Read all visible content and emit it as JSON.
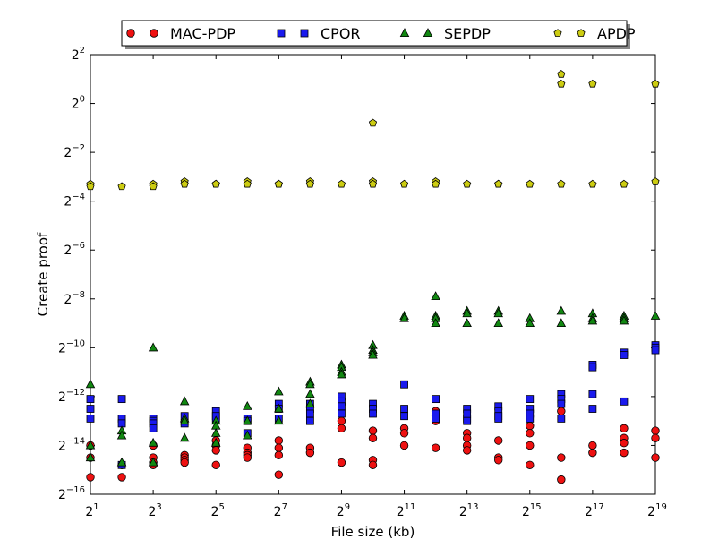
{
  "chart_data": {
    "type": "scatter",
    "title": "",
    "xlabel": "File size (kb)",
    "ylabel": "Create proof",
    "x_scale": "log2",
    "y_scale": "log2",
    "xlim_exp": [
      1,
      19
    ],
    "ylim_exp": [
      -16,
      2
    ],
    "x_tick_exps": [
      1,
      3,
      5,
      7,
      9,
      11,
      13,
      15,
      17,
      19
    ],
    "y_tick_exps": [
      2,
      0,
      -2,
      -4,
      -6,
      -8,
      -10,
      -12,
      -14,
      -16
    ],
    "tick_base": "2",
    "grid": false,
    "legend_position": "top-center",
    "series": [
      {
        "name": "MAC-PDP",
        "marker": "circle",
        "color": "#ee1111",
        "points": [
          [
            1,
            -14.0
          ],
          [
            1,
            -14.5
          ],
          [
            1,
            -15.3
          ],
          [
            2,
            -14.8
          ],
          [
            2,
            -15.3
          ],
          [
            3,
            -14.0
          ],
          [
            3,
            -14.5
          ],
          [
            3,
            -14.7
          ],
          [
            3,
            -14.8
          ],
          [
            4,
            -14.4
          ],
          [
            4,
            -14.5
          ],
          [
            4,
            -14.6
          ],
          [
            4,
            -14.7
          ],
          [
            5,
            -13.8
          ],
          [
            5,
            -14.0
          ],
          [
            5,
            -14.2
          ],
          [
            5,
            -14.8
          ],
          [
            6,
            -14.1
          ],
          [
            6,
            -14.3
          ],
          [
            6,
            -14.4
          ],
          [
            6,
            -14.5
          ],
          [
            7,
            -13.8
          ],
          [
            7,
            -14.1
          ],
          [
            7,
            -14.4
          ],
          [
            7,
            -15.2
          ],
          [
            8,
            -14.1
          ],
          [
            8,
            -14.3
          ],
          [
            9,
            -13.0
          ],
          [
            9,
            -13.3
          ],
          [
            9,
            -14.7
          ],
          [
            10,
            -13.4
          ],
          [
            10,
            -13.7
          ],
          [
            10,
            -14.6
          ],
          [
            10,
            -14.8
          ],
          [
            11,
            -13.3
          ],
          [
            11,
            -13.5
          ],
          [
            11,
            -14.0
          ],
          [
            12,
            -12.6
          ],
          [
            12,
            -12.8
          ],
          [
            12,
            -13.0
          ],
          [
            12,
            -14.1
          ],
          [
            13,
            -13.5
          ],
          [
            13,
            -13.7
          ],
          [
            13,
            -14.0
          ],
          [
            13,
            -14.2
          ],
          [
            14,
            -13.8
          ],
          [
            14,
            -14.5
          ],
          [
            14,
            -14.6
          ],
          [
            15,
            -13.2
          ],
          [
            15,
            -13.5
          ],
          [
            15,
            -14.0
          ],
          [
            15,
            -14.8
          ],
          [
            16,
            -12.6
          ],
          [
            16,
            -14.5
          ],
          [
            16,
            -15.4
          ],
          [
            17,
            -14.0
          ],
          [
            17,
            -14.3
          ],
          [
            18,
            -13.3
          ],
          [
            18,
            -13.7
          ],
          [
            18,
            -13.9
          ],
          [
            18,
            -14.3
          ],
          [
            19,
            -13.4
          ],
          [
            19,
            -13.7
          ],
          [
            19,
            -14.5
          ]
        ]
      },
      {
        "name": "CPOR",
        "marker": "square",
        "color": "#1a1aee",
        "points": [
          [
            1,
            -12.1
          ],
          [
            1,
            -12.5
          ],
          [
            1,
            -12.9
          ],
          [
            2,
            -12.1
          ],
          [
            2,
            -12.9
          ],
          [
            2,
            -13.1
          ],
          [
            2,
            -14.8
          ],
          [
            3,
            -12.9
          ],
          [
            3,
            -13.0
          ],
          [
            3,
            -13.1
          ],
          [
            3,
            -13.3
          ],
          [
            4,
            -12.8
          ],
          [
            4,
            -13.1
          ],
          [
            5,
            -12.6
          ],
          [
            5,
            -12.8
          ],
          [
            5,
            -12.9
          ],
          [
            6,
            -12.9
          ],
          [
            6,
            -13.0
          ],
          [
            6,
            -13.5
          ],
          [
            7,
            -12.3
          ],
          [
            7,
            -12.5
          ],
          [
            7,
            -12.9
          ],
          [
            8,
            -12.3
          ],
          [
            8,
            -12.5
          ],
          [
            8,
            -12.7
          ],
          [
            8,
            -13.0
          ],
          [
            9,
            -12.0
          ],
          [
            9,
            -12.2
          ],
          [
            9,
            -12.4
          ],
          [
            9,
            -12.7
          ],
          [
            10,
            -12.3
          ],
          [
            10,
            -12.5
          ],
          [
            10,
            -12.7
          ],
          [
            11,
            -11.5
          ],
          [
            11,
            -12.5
          ],
          [
            11,
            -12.8
          ],
          [
            12,
            -12.1
          ],
          [
            12,
            -12.7
          ],
          [
            12,
            -12.9
          ],
          [
            13,
            -12.5
          ],
          [
            13,
            -12.7
          ],
          [
            13,
            -12.9
          ],
          [
            13,
            -13.0
          ],
          [
            14,
            -12.4
          ],
          [
            14,
            -12.6
          ],
          [
            14,
            -12.8
          ],
          [
            14,
            -12.9
          ],
          [
            15,
            -12.1
          ],
          [
            15,
            -12.5
          ],
          [
            15,
            -12.7
          ],
          [
            15,
            -12.9
          ],
          [
            16,
            -11.9
          ],
          [
            16,
            -12.1
          ],
          [
            16,
            -12.3
          ],
          [
            16,
            -12.9
          ],
          [
            17,
            -10.7
          ],
          [
            17,
            -10.8
          ],
          [
            17,
            -11.9
          ],
          [
            17,
            -12.5
          ],
          [
            18,
            -10.2
          ],
          [
            18,
            -10.3
          ],
          [
            18,
            -12.2
          ],
          [
            19,
            -9.9
          ],
          [
            19,
            -10.0
          ],
          [
            19,
            -10.1
          ]
        ]
      },
      {
        "name": "SEPDP",
        "marker": "triangle",
        "color": "#118811",
        "points": [
          [
            1,
            -11.5
          ],
          [
            1,
            -14.0
          ],
          [
            1,
            -14.5
          ],
          [
            2,
            -13.4
          ],
          [
            2,
            -13.6
          ],
          [
            2,
            -14.7
          ],
          [
            3,
            -10.0
          ],
          [
            3,
            -13.9
          ],
          [
            3,
            -14.7
          ],
          [
            4,
            -12.2
          ],
          [
            4,
            -12.9
          ],
          [
            4,
            -13.0
          ],
          [
            4,
            -13.7
          ],
          [
            5,
            -13.0
          ],
          [
            5,
            -13.2
          ],
          [
            5,
            -13.5
          ],
          [
            5,
            -13.9
          ],
          [
            6,
            -12.4
          ],
          [
            6,
            -13.0
          ],
          [
            6,
            -13.6
          ],
          [
            7,
            -11.8
          ],
          [
            7,
            -12.5
          ],
          [
            7,
            -13.0
          ],
          [
            8,
            -11.4
          ],
          [
            8,
            -11.5
          ],
          [
            8,
            -11.9
          ],
          [
            8,
            -12.3
          ],
          [
            9,
            -10.7
          ],
          [
            9,
            -10.8
          ],
          [
            9,
            -11.0
          ],
          [
            9,
            -11.1
          ],
          [
            10,
            -9.9
          ],
          [
            10,
            -10.1
          ],
          [
            10,
            -10.2
          ],
          [
            10,
            -10.3
          ],
          [
            11,
            -8.7
          ],
          [
            11,
            -8.8
          ],
          [
            12,
            -7.9
          ],
          [
            12,
            -8.7
          ],
          [
            12,
            -8.8
          ],
          [
            12,
            -9.0
          ],
          [
            13,
            -8.5
          ],
          [
            13,
            -8.6
          ],
          [
            13,
            -9.0
          ],
          [
            14,
            -8.5
          ],
          [
            14,
            -8.6
          ],
          [
            14,
            -9.0
          ],
          [
            15,
            -8.8
          ],
          [
            15,
            -9.0
          ],
          [
            16,
            -8.5
          ],
          [
            16,
            -9.0
          ],
          [
            17,
            -8.6
          ],
          [
            17,
            -8.8
          ],
          [
            17,
            -8.9
          ],
          [
            18,
            -8.7
          ],
          [
            18,
            -8.8
          ],
          [
            18,
            -8.9
          ],
          [
            19,
            -8.7
          ]
        ]
      },
      {
        "name": "APDP",
        "marker": "pentagon",
        "color": "#cccc11",
        "points": [
          [
            1,
            -3.3
          ],
          [
            1,
            -3.4
          ],
          [
            2,
            -3.4
          ],
          [
            3,
            -3.3
          ],
          [
            3,
            -3.4
          ],
          [
            4,
            -3.2
          ],
          [
            4,
            -3.3
          ],
          [
            5,
            -3.3
          ],
          [
            5,
            -3.3
          ],
          [
            6,
            -3.2
          ],
          [
            6,
            -3.3
          ],
          [
            7,
            -3.3
          ],
          [
            7,
            -3.3
          ],
          [
            8,
            -3.2
          ],
          [
            8,
            -3.3
          ],
          [
            9,
            -3.3
          ],
          [
            10,
            -0.8
          ],
          [
            10,
            -3.2
          ],
          [
            10,
            -3.3
          ],
          [
            11,
            -3.3
          ],
          [
            12,
            -3.2
          ],
          [
            12,
            -3.3
          ],
          [
            13,
            -3.3
          ],
          [
            14,
            -3.3
          ],
          [
            14,
            -3.3
          ],
          [
            15,
            -3.3
          ],
          [
            16,
            1.2
          ],
          [
            16,
            0.8
          ],
          [
            16,
            -3.3
          ],
          [
            17,
            0.8
          ],
          [
            17,
            -3.3
          ],
          [
            18,
            -3.3
          ],
          [
            19,
            0.8
          ],
          [
            19,
            -3.2
          ]
        ]
      }
    ]
  }
}
